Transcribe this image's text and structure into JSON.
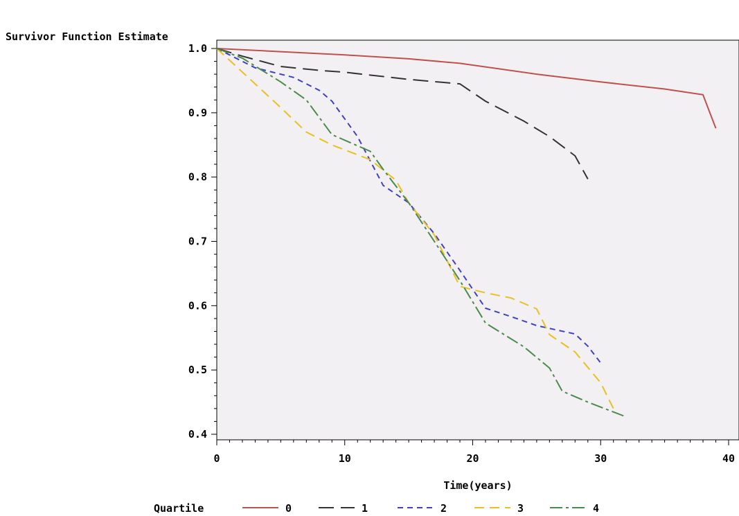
{
  "chart_data": {
    "type": "line",
    "ylabel": "Survivor Function Estimate",
    "xlabel": "Time(years)",
    "xlim": [
      0,
      40
    ],
    "ylim": [
      0.4,
      1.0
    ],
    "x_ticks": [
      "0",
      "10",
      "20",
      "30",
      "40"
    ],
    "y_ticks": [
      "0.4",
      "0.5",
      "0.6",
      "0.7",
      "0.8",
      "0.9",
      "1.0"
    ],
    "grid": false,
    "legend_title": "Quartile",
    "legend_position": "bottom",
    "series": [
      {
        "name": "0",
        "color": "#c0504d",
        "dash": "solid",
        "points": [
          [
            0,
            1.0
          ],
          [
            5,
            0.995
          ],
          [
            10,
            0.99
          ],
          [
            15,
            0.984
          ],
          [
            19,
            0.977
          ],
          [
            25,
            0.96
          ],
          [
            30,
            0.948
          ],
          [
            35,
            0.937
          ],
          [
            38,
            0.928
          ],
          [
            39,
            0.876
          ]
        ]
      },
      {
        "name": "1",
        "color": "#333333",
        "dash": "long",
        "points": [
          [
            0,
            1.0
          ],
          [
            2,
            0.988
          ],
          [
            5,
            0.972
          ],
          [
            8,
            0.966
          ],
          [
            10,
            0.963
          ],
          [
            15,
            0.952
          ],
          [
            19,
            0.945
          ],
          [
            21,
            0.918
          ],
          [
            24,
            0.887
          ],
          [
            26,
            0.863
          ],
          [
            28,
            0.833
          ],
          [
            29,
            0.797
          ]
        ]
      },
      {
        "name": "2",
        "color": "#4040c0",
        "dash": "short",
        "points": [
          [
            0,
            1.0
          ],
          [
            3,
            0.97
          ],
          [
            6,
            0.955
          ],
          [
            8,
            0.935
          ],
          [
            9,
            0.918
          ],
          [
            11,
            0.863
          ],
          [
            13,
            0.787
          ],
          [
            15,
            0.76
          ],
          [
            17,
            0.712
          ],
          [
            19,
            0.655
          ],
          [
            21,
            0.596
          ],
          [
            23,
            0.583
          ],
          [
            25,
            0.569
          ],
          [
            28,
            0.556
          ],
          [
            29,
            0.537
          ],
          [
            30,
            0.511
          ]
        ]
      },
      {
        "name": "3",
        "color": "#e8c020",
        "dash": "medium",
        "points": [
          [
            0,
            1.0
          ],
          [
            3,
            0.945
          ],
          [
            5,
            0.908
          ],
          [
            7,
            0.87
          ],
          [
            9,
            0.85
          ],
          [
            12,
            0.827
          ],
          [
            14,
            0.795
          ],
          [
            15,
            0.76
          ],
          [
            17,
            0.71
          ],
          [
            19,
            0.63
          ],
          [
            21,
            0.62
          ],
          [
            23,
            0.612
          ],
          [
            25,
            0.595
          ],
          [
            26,
            0.555
          ],
          [
            28,
            0.528
          ],
          [
            30,
            0.48
          ],
          [
            31,
            0.44
          ]
        ]
      },
      {
        "name": "4",
        "color": "#4a8a4a",
        "dash": "longshort",
        "points": [
          [
            0,
            1.0
          ],
          [
            2,
            0.985
          ],
          [
            5,
            0.948
          ],
          [
            7,
            0.92
          ],
          [
            9,
            0.866
          ],
          [
            12,
            0.84
          ],
          [
            13,
            0.812
          ],
          [
            15,
            0.76
          ],
          [
            17,
            0.7
          ],
          [
            19,
            0.639
          ],
          [
            21,
            0.573
          ],
          [
            24,
            0.536
          ],
          [
            26,
            0.503
          ],
          [
            27,
            0.467
          ],
          [
            29,
            0.45
          ],
          [
            32,
            0.427
          ]
        ]
      }
    ]
  }
}
